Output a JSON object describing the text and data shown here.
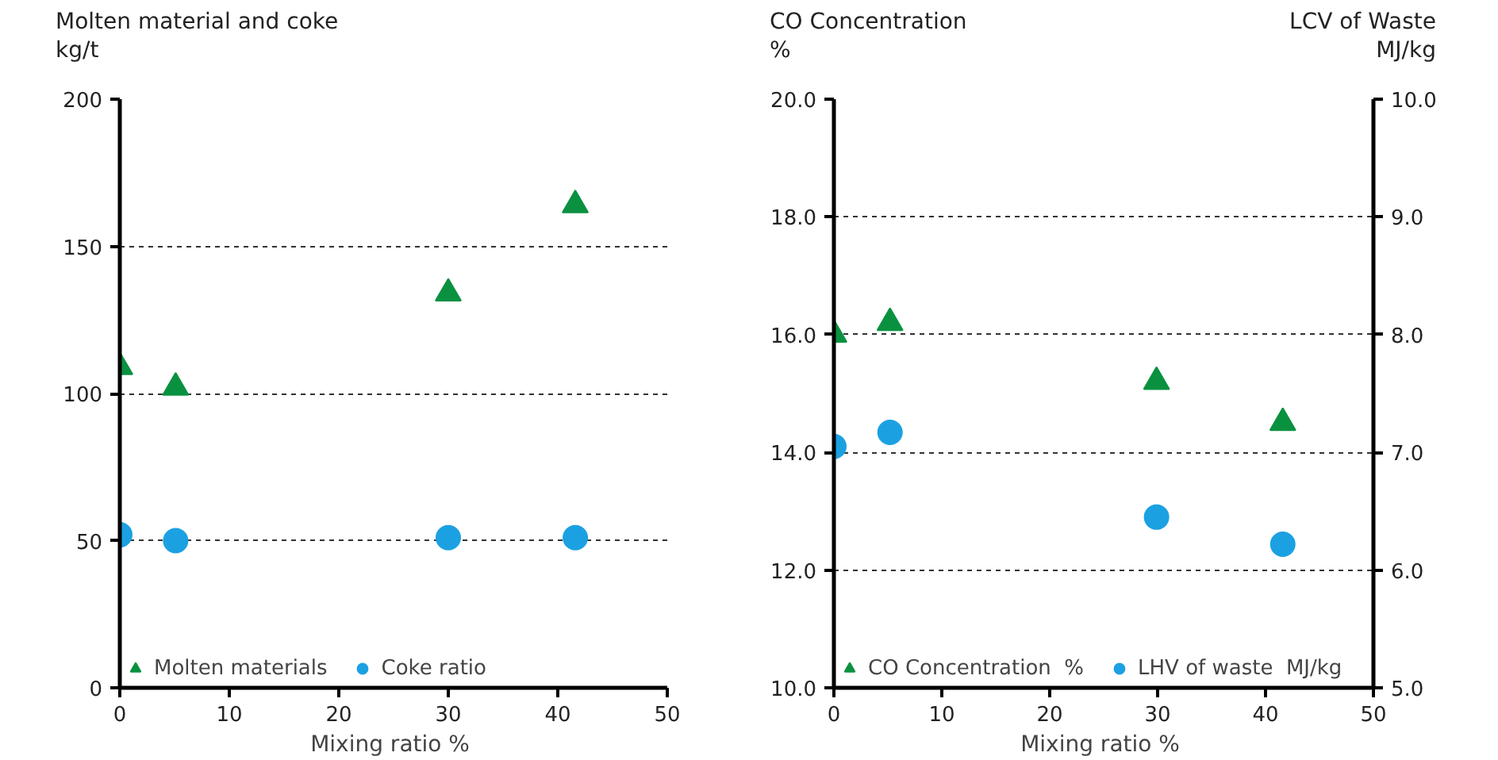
{
  "chart_data": [
    {
      "type": "scatter",
      "xlabel": "Mixing ratio  %",
      "ylabel": "Molten material and coke\nkg/t",
      "xlim": [
        0,
        50
      ],
      "xticks": [
        0,
        10,
        20,
        30,
        40,
        50
      ],
      "ylim": [
        0,
        200
      ],
      "yticks": [
        0,
        50,
        100,
        150,
        200
      ],
      "grid": "y",
      "legend": "bottom",
      "series": [
        {
          "name": "Molten materials",
          "color": "#0a9140",
          "marker": "triangle",
          "x": [
            0,
            5.1,
            30,
            41.6
          ],
          "values": [
            109,
            102,
            134,
            164
          ]
        },
        {
          "name": "Coke ratio",
          "color": "#1ba1e2",
          "marker": "circle",
          "x": [
            0,
            5.1,
            30,
            41.6
          ],
          "values": [
            52,
            50,
            51,
            51
          ]
        }
      ]
    },
    {
      "type": "scatter",
      "xlabel": "Mixing ratio  %",
      "ylabel": "CO Concentration\n%",
      "y2label": "LCV of Waste\nMJ/kg",
      "xlim": [
        0,
        50
      ],
      "xticks": [
        0,
        10,
        20,
        30,
        40,
        50
      ],
      "ylim": [
        10,
        20
      ],
      "yticks": [
        {
          "value": 10,
          "label": "10.0"
        },
        {
          "value": 12,
          "label": "12.0"
        },
        {
          "value": 14,
          "label": "14.0"
        },
        {
          "value": 16,
          "label": "16.0"
        },
        {
          "value": 18,
          "label": "18.0"
        },
        {
          "value": 20,
          "label": "20.0"
        }
      ],
      "y2lim": [
        5,
        10
      ],
      "y2ticks": [
        {
          "value": 5,
          "label": "5.0"
        },
        {
          "value": 6,
          "label": "6.0"
        },
        {
          "value": 7,
          "label": "7.0"
        },
        {
          "value": 8,
          "label": "8.0"
        },
        {
          "value": 9,
          "label": "9.0"
        },
        {
          "value": 10,
          "label": "10.0"
        }
      ],
      "grid": "y",
      "legend": "bottom",
      "series": [
        {
          "name": "CO Concentration  %",
          "color": "#0a9140",
          "marker": "triangle",
          "x": [
            0,
            5.2,
            29.9,
            41.6
          ],
          "values": [
            16.0,
            16.2,
            15.2,
            14.5
          ]
        },
        {
          "name": "LHV of waste  MJ/kg",
          "color": "#1ba1e2",
          "marker": "circle",
          "axis": "y2",
          "x": [
            0,
            5.2,
            29.9,
            41.6
          ],
          "values": [
            7.05,
            7.17,
            6.45,
            6.22
          ]
        }
      ]
    }
  ]
}
